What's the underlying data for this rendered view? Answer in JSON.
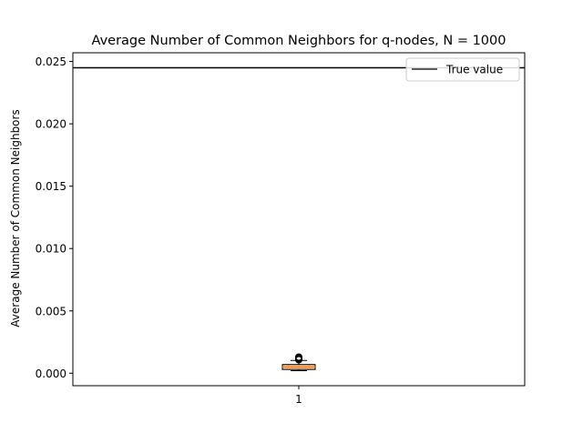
{
  "chart_data": {
    "type": "box",
    "title": "Average Number of Common Neighbors for q-nodes, N = 1000",
    "xlabel": "",
    "ylabel": "Average Number of Common Neighbors",
    "categories": [
      "1"
    ],
    "ylim": [
      -0.001,
      0.0257
    ],
    "yticks": [
      0.0,
      0.005,
      0.01,
      0.015,
      0.02,
      0.025
    ],
    "ytick_labels": [
      "0.000",
      "0.005",
      "0.010",
      "0.015",
      "0.020",
      "0.025"
    ],
    "boxes": [
      {
        "category": "1",
        "whisker_low": 0.0002,
        "q1": 0.0003,
        "median": 0.0005,
        "q3": 0.0007,
        "whisker_high": 0.00102,
        "fliers": [
          0.00108,
          0.00112,
          0.00115,
          0.00118,
          0.0012,
          0.00123,
          0.00126,
          0.0013
        ]
      }
    ],
    "reference_line": {
      "label": "True value",
      "value": 0.0245
    },
    "legend": {
      "entries": [
        "True value"
      ],
      "position": "upper right"
    },
    "grid": false,
    "colors": {
      "box_fill": "#f5b98a",
      "median": "#ff7f0e",
      "line": "#000000"
    }
  }
}
